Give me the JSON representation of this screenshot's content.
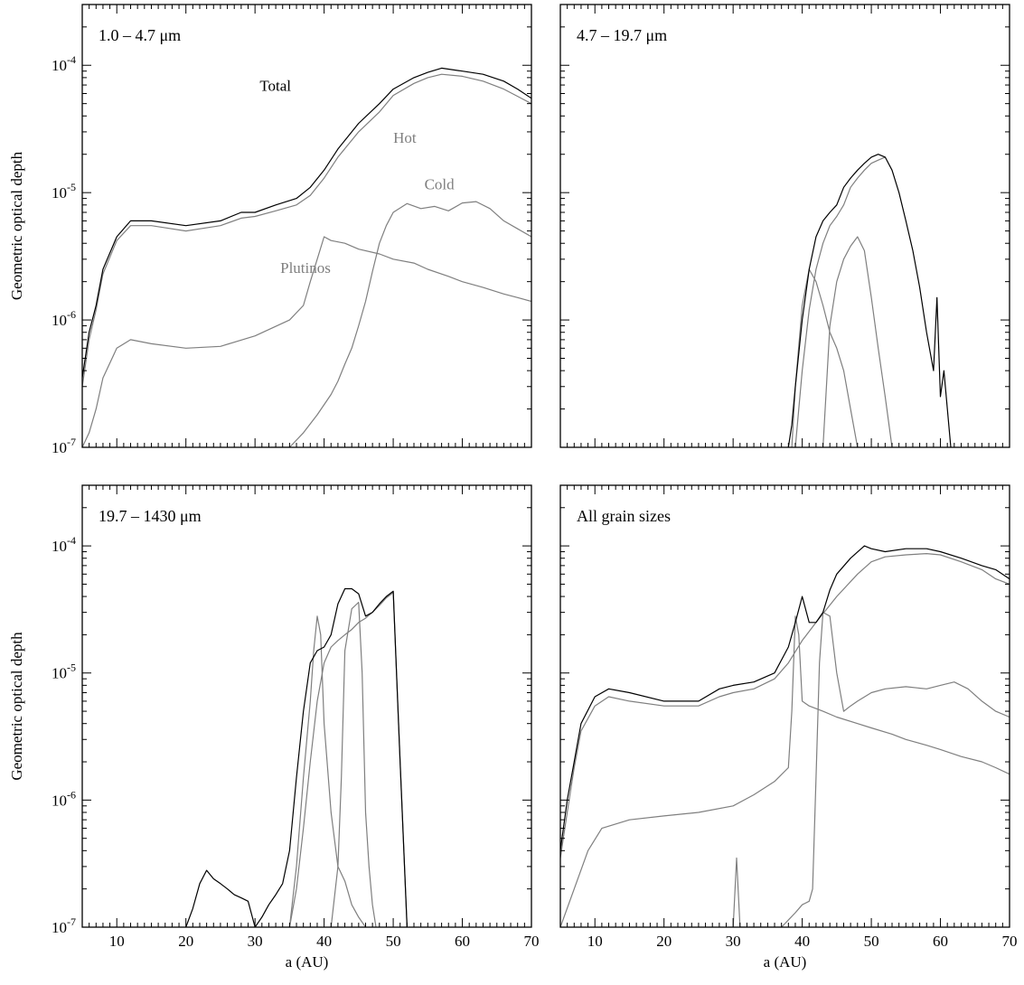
{
  "chart_data": [
    {
      "type": "line",
      "panel_label": "1.0 – 4.7 μm",
      "xlabel": "",
      "ylabel": "Geometric optical depth",
      "xlim": [
        5,
        70
      ],
      "ylim": [
        1e-07,
        0.0003
      ],
      "y_scale": "log",
      "x_ticks": [
        10,
        20,
        30,
        40,
        50,
        60,
        70
      ],
      "x_tick_labels_shown": false,
      "y_ticks": [
        {
          "exp": "-4"
        },
        {
          "exp": "-5"
        },
        {
          "exp": "-6"
        },
        {
          "exp": "-7"
        }
      ],
      "y_tick_base": "10",
      "annotations": [
        {
          "text": "Total",
          "series": "total"
        },
        {
          "text": "Hot",
          "series": "hot"
        },
        {
          "text": "Cold",
          "series": "cold"
        },
        {
          "text": "Plutinos",
          "series": "plutinos"
        }
      ],
      "series": [
        {
          "id": "total",
          "color": "#000000",
          "x": [
            5,
            6,
            7,
            8,
            10,
            12,
            15,
            20,
            25,
            28,
            30,
            33,
            36,
            38,
            40,
            42,
            45,
            48,
            50,
            53,
            55,
            57,
            60,
            63,
            66,
            68,
            70
          ],
          "y": [
            3.5e-07,
            8e-07,
            1.3e-06,
            2.5e-06,
            4.5e-06,
            6e-06,
            6e-06,
            5.5e-06,
            6e-06,
            7e-06,
            7e-06,
            8e-06,
            9e-06,
            1.1e-05,
            1.5e-05,
            2.2e-05,
            3.5e-05,
            5e-05,
            6.5e-05,
            8e-05,
            8.8e-05,
            9.5e-05,
            9e-05,
            8.5e-05,
            7.5e-05,
            6.5e-05,
            5.5e-05
          ]
        },
        {
          "id": "hot",
          "color": "#7f7f7f",
          "x": [
            5,
            6,
            7,
            8,
            10,
            12,
            15,
            20,
            25,
            28,
            30,
            33,
            36,
            38,
            40,
            42,
            45,
            48,
            50,
            53,
            55,
            57,
            60,
            63,
            66,
            68,
            70
          ],
          "y": [
            3e-07,
            7e-07,
            1.2e-06,
            2.3e-06,
            4.2e-06,
            5.5e-06,
            5.5e-06,
            5e-06,
            5.5e-06,
            6.3e-06,
            6.5e-06,
            7.2e-06,
            8e-06,
            9.5e-06,
            1.3e-05,
            1.9e-05,
            3e-05,
            4.3e-05,
            5.8e-05,
            7.2e-05,
            8e-05,
            8.5e-05,
            8.2e-05,
            7.5e-05,
            6.5e-05,
            5.7e-05,
            5e-05
          ]
        },
        {
          "id": "cold",
          "color": "#7f7f7f",
          "x": [
            30.5,
            31,
            33,
            35,
            37,
            39,
            41,
            42,
            43,
            44,
            45,
            46,
            47,
            48,
            49,
            50,
            52,
            54,
            56,
            58,
            60,
            62,
            64,
            66,
            68,
            70
          ],
          "y": [
            1e-07,
            1e-07,
            1e-07,
            1e-07,
            1.3e-07,
            1.8e-07,
            2.6e-07,
            3.3e-07,
            4.5e-07,
            6e-07,
            9e-07,
            1.4e-06,
            2.4e-06,
            4e-06,
            5.5e-06,
            7e-06,
            8.2e-06,
            7.5e-06,
            7.8e-06,
            7.2e-06,
            8.3e-06,
            8.5e-06,
            7.5e-06,
            6e-06,
            5.2e-06,
            4.5e-06
          ]
        },
        {
          "id": "plutinos",
          "color": "#7f7f7f",
          "x": [
            5,
            6,
            7,
            8,
            10,
            12,
            15,
            20,
            25,
            30,
            35,
            37,
            38,
            39,
            40,
            41,
            43,
            45,
            48,
            50,
            53,
            55,
            58,
            60,
            63,
            66,
            68,
            70
          ],
          "y": [
            1e-07,
            1.3e-07,
            2e-07,
            3.5e-07,
            6e-07,
            7e-07,
            6.5e-07,
            6e-07,
            6.2e-07,
            7.5e-07,
            1e-06,
            1.3e-06,
            2e-06,
            3e-06,
            4.5e-06,
            4.2e-06,
            4e-06,
            3.6e-06,
            3.3e-06,
            3e-06,
            2.8e-06,
            2.5e-06,
            2.2e-06,
            2e-06,
            1.8e-06,
            1.6e-06,
            1.5e-06,
            1.4e-06
          ]
        }
      ]
    },
    {
      "type": "line",
      "panel_label": "4.7 – 19.7 μm",
      "xlabel": "",
      "ylabel": "",
      "xlim": [
        5,
        70
      ],
      "ylim": [
        1e-07,
        0.0003
      ],
      "y_scale": "log",
      "x_ticks": [
        10,
        20,
        30,
        40,
        50,
        60,
        70
      ],
      "x_tick_labels_shown": false,
      "y_ticks": [],
      "y_tick_base": "",
      "annotations": [],
      "series": [
        {
          "id": "total",
          "color": "#000000",
          "x": [
            38,
            38.5,
            39,
            40,
            41,
            42,
            43,
            44,
            45,
            46,
            47,
            48,
            49,
            50,
            51,
            52,
            53,
            54,
            55,
            56,
            57,
            58,
            59,
            59.5,
            60,
            60.5,
            61,
            61.5
          ],
          "y": [
            1e-07,
            1.5e-07,
            3e-07,
            1e-06,
            2.5e-06,
            4.5e-06,
            6e-06,
            7e-06,
            8e-06,
            1.1e-05,
            1.3e-05,
            1.5e-05,
            1.7e-05,
            1.9e-05,
            2e-05,
            1.9e-05,
            1.5e-05,
            1e-05,
            6e-06,
            3.5e-06,
            1.8e-06,
            8e-07,
            4e-07,
            1.5e-06,
            2.5e-07,
            4e-07,
            2e-07,
            1e-07
          ]
        },
        {
          "id": "hot",
          "color": "#7f7f7f",
          "x": [
            39,
            39.5,
            40,
            41,
            42,
            43,
            44,
            45,
            46,
            47,
            48,
            49,
            50,
            51,
            52
          ],
          "y": [
            1e-07,
            2e-07,
            4e-07,
            1.2e-06,
            2.5e-06,
            4e-06,
            5.5e-06,
            6.5e-06,
            8e-06,
            1.1e-05,
            1.3e-05,
            1.5e-05,
            1.7e-05,
            1.8e-05,
            1.9e-05
          ]
        },
        {
          "id": "plutinos",
          "color": "#7f7f7f",
          "x": [
            38.5,
            39,
            40,
            41,
            42,
            43,
            44,
            45,
            46,
            47,
            48
          ],
          "y": [
            1e-07,
            3e-07,
            1.3e-06,
            2.5e-06,
            2e-06,
            1.3e-06,
            8e-07,
            6e-07,
            4e-07,
            2e-07,
            1e-07
          ]
        },
        {
          "id": "cold",
          "color": "#7f7f7f",
          "x": [
            43,
            43.5,
            44,
            45,
            46,
            47,
            48,
            49,
            50,
            51,
            52,
            53
          ],
          "y": [
            1e-07,
            3e-07,
            9e-07,
            2e-06,
            3e-06,
            3.8e-06,
            4.5e-06,
            3.5e-06,
            1.5e-06,
            6e-07,
            2.5e-07,
            1e-07
          ]
        }
      ]
    },
    {
      "type": "line",
      "panel_label": "19.7 – 1430 μm",
      "xlabel": "a (AU)",
      "ylabel": "Geometric optical depth",
      "xlim": [
        5,
        70
      ],
      "ylim": [
        1e-07,
        0.0003
      ],
      "y_scale": "log",
      "x_ticks": [
        10,
        20,
        30,
        40,
        50,
        60,
        70
      ],
      "x_tick_labels_shown": true,
      "y_ticks": [
        {
          "exp": "-4"
        },
        {
          "exp": "-5"
        },
        {
          "exp": "-6"
        },
        {
          "exp": "-7"
        }
      ],
      "y_tick_base": "10",
      "annotations": [],
      "series": [
        {
          "id": "total",
          "color": "#000000",
          "x": [
            20,
            21,
            22,
            23,
            24,
            25,
            26,
            27,
            28,
            29,
            30,
            31,
            32,
            33,
            34,
            35,
            36,
            37,
            38,
            39,
            40,
            41,
            42,
            43,
            44,
            45,
            46,
            47,
            48,
            49,
            50,
            51,
            52
          ],
          "y": [
            1e-07,
            1.4e-07,
            2.2e-07,
            2.8e-07,
            2.4e-07,
            2.2e-07,
            2e-07,
            1.8e-07,
            1.7e-07,
            1.6e-07,
            1e-07,
            1.2e-07,
            1.5e-07,
            1.8e-07,
            2.2e-07,
            4e-07,
            1.5e-06,
            5e-06,
            1.2e-05,
            1.5e-05,
            1.6e-05,
            2e-05,
            3.5e-05,
            4.6e-05,
            4.6e-05,
            4.2e-05,
            2.8e-05,
            3e-05,
            3.5e-05,
            4e-05,
            4.4e-05,
            2e-06,
            1e-07
          ]
        },
        {
          "id": "plutinos",
          "color": "#7f7f7f",
          "x": [
            35,
            36,
            37,
            38,
            38.5,
            39,
            39.5,
            40,
            41,
            42,
            43,
            44,
            45,
            46
          ],
          "y": [
            1e-07,
            3e-07,
            1.5e-06,
            6e-06,
            1.5e-05,
            2.8e-05,
            2e-05,
            4e-06,
            8e-07,
            3e-07,
            2.3e-07,
            1.5e-07,
            1.2e-07,
            1e-07
          ]
        },
        {
          "id": "cold",
          "color": "#7f7f7f",
          "x": [
            41,
            42,
            42.5,
            43,
            44,
            45,
            45.5,
            46,
            46.5,
            47,
            47.5
          ],
          "y": [
            1e-07,
            3e-07,
            1.5e-06,
            1.5e-05,
            3.2e-05,
            3.6e-05,
            1e-05,
            8e-07,
            3e-07,
            1.5e-07,
            1e-07
          ]
        },
        {
          "id": "hot",
          "color": "#7f7f7f",
          "x": [
            35,
            36,
            37,
            38,
            39,
            40,
            41,
            42,
            43,
            44,
            45,
            46,
            47,
            48,
            49,
            50,
            51,
            52
          ],
          "y": [
            1e-07,
            2e-07,
            6e-07,
            2e-06,
            6e-06,
            1.2e-05,
            1.6e-05,
            1.8e-05,
            2e-05,
            2.2e-05,
            2.5e-05,
            2.7e-05,
            3e-05,
            3.4e-05,
            3.9e-05,
            4.3e-05,
            2e-06,
            1e-07
          ]
        }
      ]
    },
    {
      "type": "line",
      "panel_label": "All grain sizes",
      "xlabel": "a (AU)",
      "ylabel": "",
      "xlim": [
        5,
        70
      ],
      "ylim": [
        1e-07,
        0.0003
      ],
      "y_scale": "log",
      "x_ticks": [
        10,
        20,
        30,
        40,
        50,
        60,
        70
      ],
      "x_tick_labels_shown": true,
      "y_ticks": [],
      "y_tick_base": "",
      "annotations": [],
      "series": [
        {
          "id": "total",
          "color": "#000000",
          "x": [
            5,
            6,
            7,
            8,
            10,
            12,
            15,
            20,
            25,
            28,
            30,
            33,
            36,
            38,
            39,
            40,
            41,
            42,
            43,
            44,
            45,
            47,
            49,
            50,
            52,
            55,
            58,
            60,
            63,
            66,
            68,
            70
          ],
          "y": [
            4e-07,
            1e-06,
            2e-06,
            4e-06,
            6.5e-06,
            7.5e-06,
            7e-06,
            6e-06,
            6e-06,
            7.5e-06,
            8e-06,
            8.5e-06,
            1e-05,
            1.6e-05,
            2.5e-05,
            4e-05,
            2.5e-05,
            2.5e-05,
            3e-05,
            4.5e-05,
            6e-05,
            8e-05,
            0.0001,
            9.5e-05,
            9e-05,
            9.5e-05,
            9.5e-05,
            9e-05,
            8e-05,
            7e-05,
            6.5e-05,
            5.5e-05
          ]
        },
        {
          "id": "hot",
          "color": "#7f7f7f",
          "x": [
            5,
            6,
            7,
            8,
            10,
            12,
            15,
            20,
            25,
            28,
            30,
            33,
            36,
            38,
            40,
            42,
            45,
            48,
            50,
            52,
            55,
            58,
            60,
            63,
            66,
            68,
            70
          ],
          "y": [
            3.5e-07,
            8e-07,
            1.8e-06,
            3.5e-06,
            5.5e-06,
            6.5e-06,
            6e-06,
            5.5e-06,
            5.5e-06,
            6.5e-06,
            7e-06,
            7.5e-06,
            9e-06,
            1.2e-05,
            1.8e-05,
            2.5e-05,
            4e-05,
            6e-05,
            7.5e-05,
            8.2e-05,
            8.5e-05,
            8.7e-05,
            8.5e-05,
            7.5e-05,
            6.5e-05,
            5.5e-05,
            5e-05
          ]
        },
        {
          "id": "plutinos",
          "color": "#7f7f7f",
          "x": [
            5,
            7,
            9,
            11,
            15,
            20,
            25,
            30,
            33,
            36,
            38,
            38.5,
            39,
            39.5,
            40,
            41,
            43,
            45,
            48,
            50,
            53,
            55,
            58,
            60,
            63,
            66,
            68,
            70
          ],
          "y": [
            1e-07,
            2e-07,
            4e-07,
            6e-07,
            7e-07,
            7.5e-07,
            8e-07,
            9e-07,
            1.1e-06,
            1.4e-06,
            1.8e-06,
            5e-06,
            2.8e-05,
            2e-05,
            6e-06,
            5.5e-06,
            5e-06,
            4.5e-06,
            4e-06,
            3.7e-06,
            3.3e-06,
            3e-06,
            2.7e-06,
            2.5e-06,
            2.2e-06,
            2e-06,
            1.8e-06,
            1.6e-06
          ]
        },
        {
          "id": "cold",
          "color": "#7f7f7f",
          "x": [
            30,
            30.5,
            31,
            33,
            35,
            37,
            39,
            40,
            41,
            41.5,
            42,
            42.5,
            43,
            44,
            45,
            46,
            47,
            48,
            50,
            52,
            55,
            58,
            60,
            62,
            64,
            66,
            68,
            70
          ],
          "y": [
            1e-07,
            3.5e-07,
            1e-07,
            1e-07,
            1e-07,
            1e-07,
            1.3e-07,
            1.5e-07,
            1.6e-07,
            2e-07,
            1.5e-06,
            1.2e-05,
            3e-05,
            2.8e-05,
            1e-05,
            5e-06,
            5.5e-06,
            6e-06,
            7e-06,
            7.5e-06,
            7.8e-06,
            7.5e-06,
            8e-06,
            8.5e-06,
            7.5e-06,
            6e-06,
            5e-06,
            4.5e-06
          ]
        }
      ]
    }
  ]
}
